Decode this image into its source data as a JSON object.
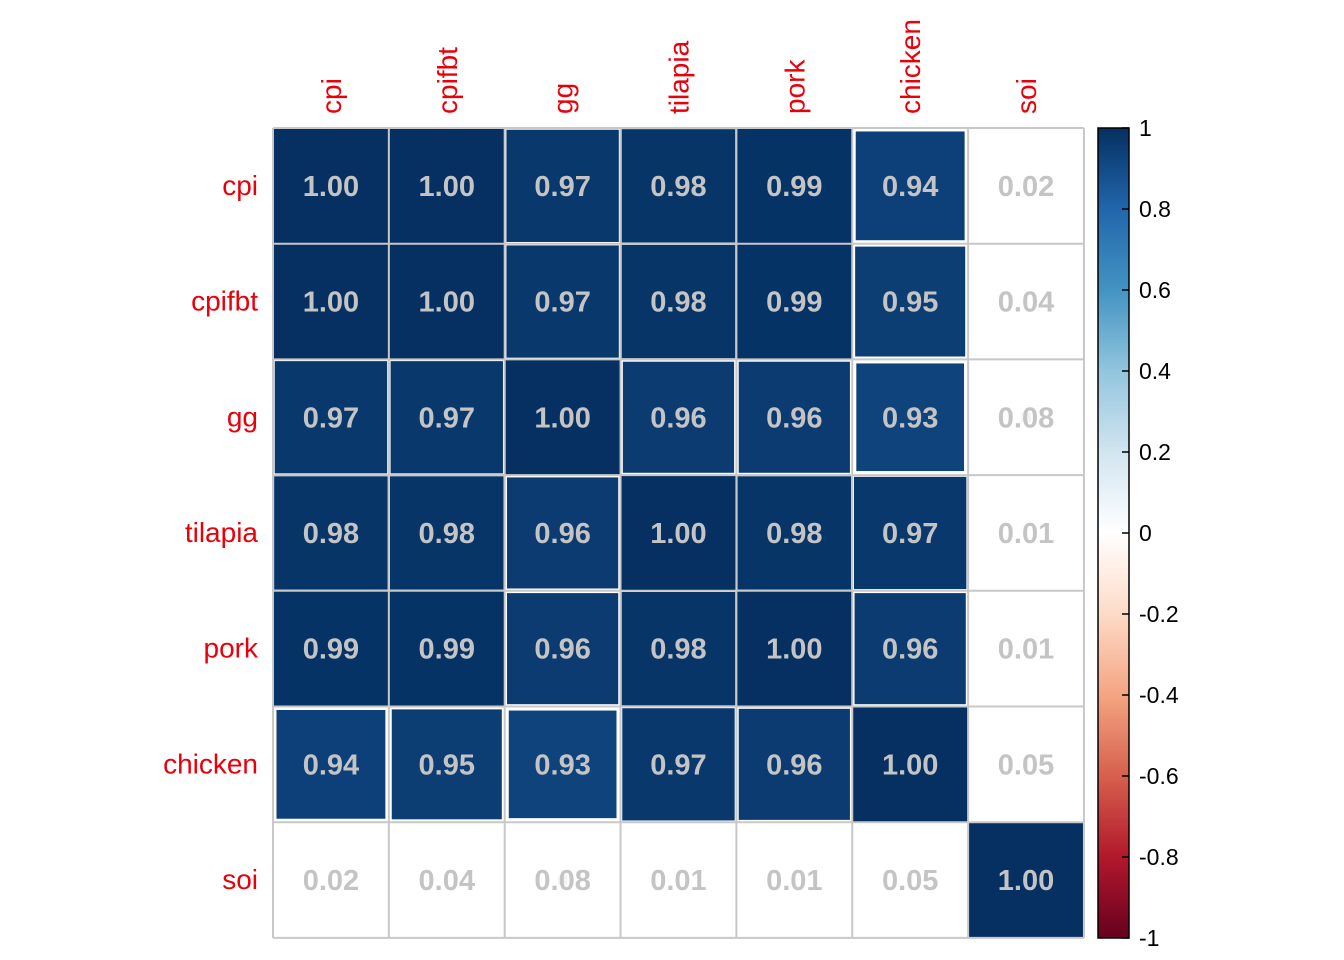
{
  "colors": {
    "label": "#e8000b",
    "value_text": "#c4c4c4",
    "grid": "#c8c8c8",
    "scale_low": "#67001f",
    "scale_mid": "#ffffff",
    "scale_high": "#053061"
  },
  "chart_data": {
    "type": "heatmap",
    "title": "",
    "variables": [
      "cpi",
      "cpifbt",
      "gg",
      "tilapia",
      "pork",
      "chicken",
      "soi"
    ],
    "matrix": [
      [
        "1.00",
        "1.00",
        "0.97",
        "0.98",
        "0.99",
        "0.94",
        "0.02"
      ],
      [
        "1.00",
        "1.00",
        "0.97",
        "0.98",
        "0.99",
        "0.95",
        "0.04"
      ],
      [
        "0.97",
        "0.97",
        "1.00",
        "0.96",
        "0.96",
        "0.93",
        "0.08"
      ],
      [
        "0.98",
        "0.98",
        "0.96",
        "1.00",
        "0.98",
        "0.97",
        "0.01"
      ],
      [
        "0.99",
        "0.99",
        "0.96",
        "0.98",
        "1.00",
        "0.96",
        "0.01"
      ],
      [
        "0.94",
        "0.95",
        "0.93",
        "0.97",
        "0.96",
        "1.00",
        "0.05"
      ],
      [
        "0.02",
        "0.04",
        "0.08",
        "0.01",
        "0.01",
        "0.05",
        "1.00"
      ]
    ],
    "color_scale": {
      "range": [
        -1,
        1
      ],
      "ticks": [
        "1",
        "0.8",
        "0.6",
        "0.4",
        "0.2",
        "0",
        "-0.2",
        "-0.4",
        "-0.6",
        "-0.8",
        "-1"
      ],
      "stops": [
        "#67001f",
        "#b2182b",
        "#d6604d",
        "#f4a582",
        "#fddbc7",
        "#ffffff",
        "#d1e5f0",
        "#92c5de",
        "#4393c3",
        "#2166ac",
        "#053061"
      ]
    },
    "legend": "right"
  }
}
